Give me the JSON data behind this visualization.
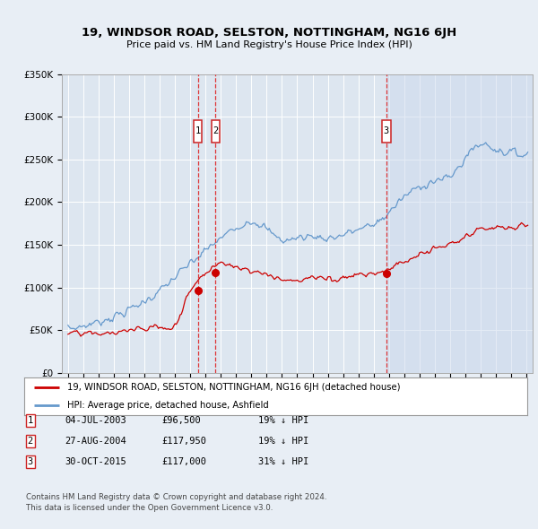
{
  "title": "19, WINDSOR ROAD, SELSTON, NOTTINGHAM, NG16 6JH",
  "subtitle": "Price paid vs. HM Land Registry's House Price Index (HPI)",
  "legend_line1": "19, WINDSOR ROAD, SELSTON, NOTTINGHAM, NG16 6JH (detached house)",
  "legend_line2": "HPI: Average price, detached house, Ashfield",
  "footnote1": "Contains HM Land Registry data © Crown copyright and database right 2024.",
  "footnote2": "This data is licensed under the Open Government Licence v3.0.",
  "transactions": [
    {
      "num": 1,
      "date": "04-JUL-2003",
      "price": "£96,500",
      "hpi": "19% ↓ HPI",
      "year": 2003.5
    },
    {
      "num": 2,
      "date": "27-AUG-2004",
      "price": "£117,950",
      "hpi": "19% ↓ HPI",
      "year": 2004.65
    },
    {
      "num": 3,
      "date": "30-OCT-2015",
      "price": "£117,000",
      "hpi": "31% ↓ HPI",
      "year": 2015.83
    }
  ],
  "transaction_marker_prices": [
    96500,
    117950,
    117000
  ],
  "ylim": [
    0,
    350000
  ],
  "yticks": [
    0,
    50000,
    100000,
    150000,
    200000,
    250000,
    300000,
    350000
  ],
  "xlim_start": 1994.6,
  "xlim_end": 2025.4,
  "background_color": "#e8eef5",
  "plot_bg_color": "#dde6f0",
  "grid_color": "#ffffff",
  "line_red": "#cc0000",
  "line_blue": "#6699cc",
  "highlight_blue": "#d0dff0"
}
